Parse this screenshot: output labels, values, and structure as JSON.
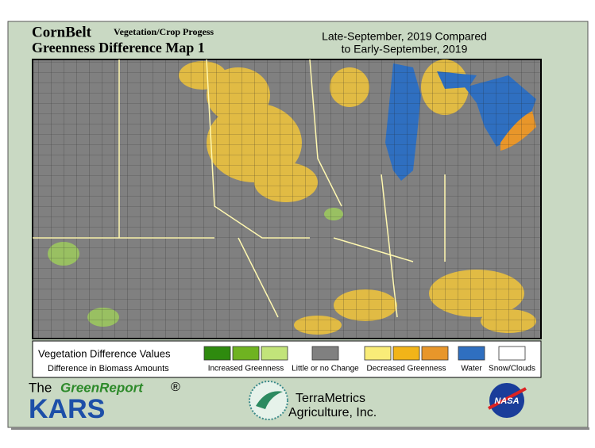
{
  "header": {
    "title": "CornBelt",
    "subtitle": "Vegetation/Crop Progess",
    "map_name": "Greenness Difference Map 1",
    "period_line1": "Late-September, 2019 Compared",
    "period_line2": "to Early-September, 2019"
  },
  "legend": {
    "title": "Vegetation Difference Values",
    "subtitle": "Difference in Biomass Amounts",
    "items": [
      {
        "label": "Increased Greenness",
        "colors": [
          "#2e8a0e",
          "#6fb321",
          "#c2e47a"
        ]
      },
      {
        "label": "Little or no Change",
        "colors": [
          "#808080"
        ]
      },
      {
        "label": "Decreased Greenness",
        "colors": [
          "#f9ec78",
          "#f2b418",
          "#e8962a"
        ]
      },
      {
        "label": "Water",
        "colors": [
          "#2f6fc0"
        ]
      },
      {
        "label": "Snow/Clouds",
        "colors": [
          "#ffffff"
        ]
      }
    ]
  },
  "footer": {
    "the": "The",
    "green_report": "GreenReport",
    "registered": "®",
    "kars": "KARS",
    "company_line1": "TerraMetrics",
    "company_line2": "Agriculture, Inc.",
    "nasa": "NASA"
  }
}
